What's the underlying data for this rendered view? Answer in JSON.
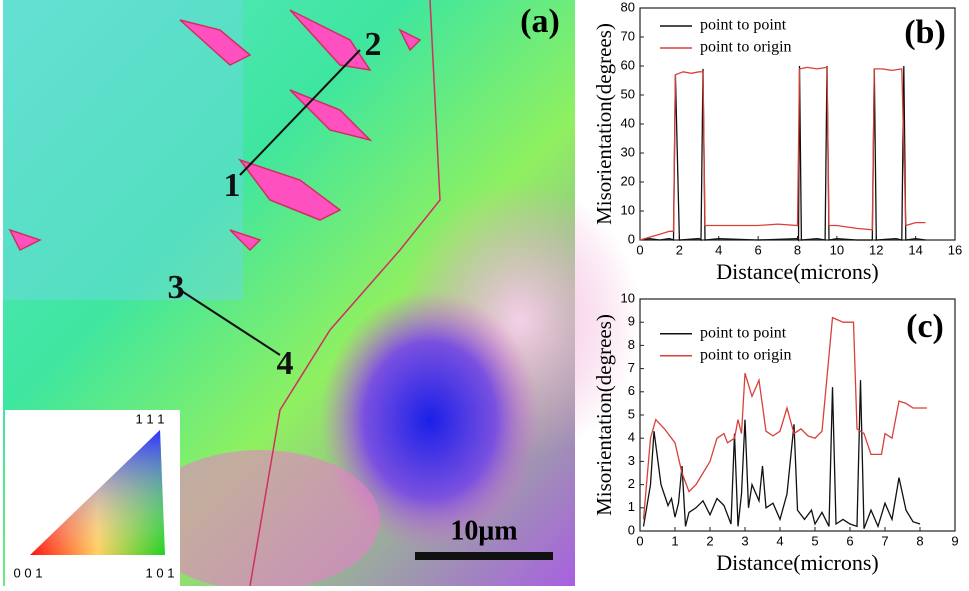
{
  "image_panel": {
    "label": "(a)",
    "points": [
      "1",
      "2",
      "3",
      "4"
    ],
    "scale_bar": "10μm",
    "color_key": [
      "0 0 1",
      "1 0 1",
      "1 1 1"
    ]
  },
  "chart_data": [
    {
      "type": "line",
      "panel_label": "(b)",
      "x_label": "Distance(microns)",
      "y_label": "Misorientation(degrees)",
      "legend": "upper left",
      "xlim": [
        0,
        16
      ],
      "xticks": [
        0,
        2,
        4,
        6,
        8,
        10,
        12,
        14,
        16
      ],
      "ylim": [
        0,
        80
      ],
      "yticks": [
        0,
        10,
        20,
        30,
        40,
        50,
        60,
        70,
        80
      ],
      "series": [
        {
          "name": "point to point",
          "color": "#111111",
          "x": [
            0,
            0.5,
            1,
            1.5,
            1.7,
            1.8,
            2,
            3,
            3.1,
            3.2,
            3.3,
            4,
            6,
            8,
            8.05,
            8.1,
            8.2,
            9,
            9.4,
            9.5,
            9.6,
            10,
            11,
            11.8,
            11.9,
            12,
            13,
            13.3,
            13.4,
            13.5,
            14,
            14.5
          ],
          "values": [
            0,
            0.5,
            0,
            0.5,
            0,
            57,
            0,
            0.5,
            0,
            59,
            0,
            0.5,
            0,
            0.5,
            0,
            60,
            0,
            0.5,
            0,
            60,
            0,
            0.5,
            0,
            0,
            59,
            0,
            0.5,
            0,
            60,
            0,
            0.5,
            0
          ]
        },
        {
          "name": "point to origin",
          "color": "#d9403a",
          "x": [
            0,
            0.5,
            1,
            1.5,
            1.7,
            1.8,
            2.2,
            2.6,
            3.0,
            3.2,
            3.3,
            4,
            5,
            6,
            7,
            8,
            8.1,
            8.5,
            9,
            9.5,
            9.6,
            10,
            11,
            11.8,
            11.9,
            12.3,
            12.8,
            13.3,
            13.5,
            14,
            14.5
          ],
          "values": [
            0,
            1,
            2,
            3,
            3,
            57,
            58,
            57.5,
            58,
            58,
            5,
            5,
            5,
            5,
            5.5,
            5,
            59,
            59.5,
            59,
            59.5,
            5,
            5,
            4,
            3.5,
            59,
            59,
            58.5,
            59,
            5,
            6,
            6
          ]
        }
      ]
    },
    {
      "type": "line",
      "panel_label": "(c)",
      "x_label": "Distance(microns)",
      "y_label": "Misorientation(degrees)",
      "legend": "center left",
      "xlim": [
        0,
        9
      ],
      "xticks": [
        0,
        1,
        2,
        3,
        4,
        5,
        6,
        7,
        8,
        9
      ],
      "ylim": [
        0,
        10
      ],
      "yticks": [
        0,
        1,
        2,
        3,
        4,
        5,
        6,
        7,
        8,
        9,
        10
      ],
      "series": [
        {
          "name": "point to point",
          "color": "#111111",
          "x": [
            0.1,
            0.3,
            0.4,
            0.6,
            0.8,
            0.9,
            1.0,
            1.1,
            1.2,
            1.3,
            1.4,
            1.6,
            1.8,
            2.0,
            2.2,
            2.4,
            2.6,
            2.7,
            2.8,
            2.9,
            3.0,
            3.1,
            3.2,
            3.4,
            3.5,
            3.6,
            3.8,
            4.0,
            4.2,
            4.4,
            4.5,
            4.7,
            4.9,
            5.0,
            5.2,
            5.4,
            5.5,
            5.6,
            5.8,
            6.0,
            6.2,
            6.3,
            6.4,
            6.6,
            6.8,
            7.0,
            7.2,
            7.4,
            7.6,
            7.8,
            8.0
          ],
          "values": [
            0.2,
            2,
            4.3,
            2,
            1.1,
            1.4,
            0.6,
            1.2,
            2.8,
            0.2,
            0.8,
            1.0,
            1.3,
            0.7,
            1.4,
            1.1,
            0.3,
            4.2,
            0.2,
            1.6,
            4.8,
            1.0,
            2.0,
            1.3,
            2.8,
            1.0,
            1.2,
            0.5,
            1.6,
            4.6,
            0.9,
            0.5,
            0.9,
            0.3,
            0.8,
            0.2,
            6.2,
            0.3,
            0.5,
            0.3,
            0.2,
            6.5,
            0.1,
            0.9,
            0.2,
            1.2,
            0.5,
            2.3,
            0.9,
            0.4,
            0.3
          ]
        },
        {
          "name": "point to origin",
          "color": "#d9403a",
          "x": [
            0.1,
            0.3,
            0.45,
            0.7,
            1.0,
            1.2,
            1.4,
            1.6,
            1.8,
            2.0,
            2.2,
            2.4,
            2.5,
            2.7,
            2.8,
            2.9,
            3.0,
            3.2,
            3.4,
            3.6,
            3.8,
            4.0,
            4.2,
            4.4,
            4.6,
            4.8,
            5.0,
            5.2,
            5.5,
            5.8,
            6.1,
            6.2,
            6.4,
            6.6,
            6.9,
            7.0,
            7.2,
            7.4,
            7.6,
            7.8,
            8.2
          ],
          "values": [
            0.5,
            4,
            4.8,
            4.4,
            3.8,
            2.5,
            1.7,
            2.0,
            2.5,
            3.0,
            4.0,
            4.2,
            3.8,
            4.0,
            4.8,
            4.2,
            6.8,
            5.8,
            6.5,
            4.3,
            4.1,
            4.3,
            5.3,
            4.2,
            4.4,
            4.1,
            4.0,
            4.3,
            9.2,
            9.0,
            9.0,
            4.4,
            4.2,
            3.3,
            3.3,
            4.2,
            4.0,
            5.6,
            5.5,
            5.3,
            5.3
          ]
        }
      ]
    }
  ]
}
